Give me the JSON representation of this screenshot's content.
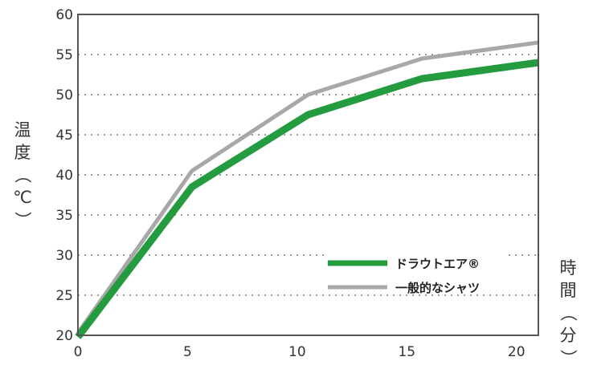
{
  "chart_data": {
    "type": "line",
    "xlabel": "時間（分）",
    "ylabel": "温度（℃）",
    "xlim": [
      0,
      21
    ],
    "ylim": [
      20,
      60
    ],
    "x_ticks": [
      "0",
      "5",
      "10",
      "15",
      "20"
    ],
    "y_ticks": [
      "20",
      "25",
      "30",
      "35",
      "40",
      "45",
      "50",
      "55",
      "60"
    ],
    "grid": "horizontal dotted",
    "legend_position": "lower-right",
    "series": [
      {
        "name": "ドラウトエア®",
        "color": "#239b3e",
        "points": [
          [
            0,
            19.8
          ],
          [
            5.2,
            38.5
          ],
          [
            10.5,
            47.5
          ],
          [
            15.7,
            52
          ],
          [
            21,
            54
          ]
        ]
      },
      {
        "name": "一般的なシャツ",
        "color": "#a8a8a8",
        "points": [
          [
            0,
            20.3
          ],
          [
            5.2,
            40.5
          ],
          [
            10.5,
            50
          ],
          [
            15.7,
            54.5
          ],
          [
            21,
            56.5
          ]
        ]
      }
    ]
  }
}
